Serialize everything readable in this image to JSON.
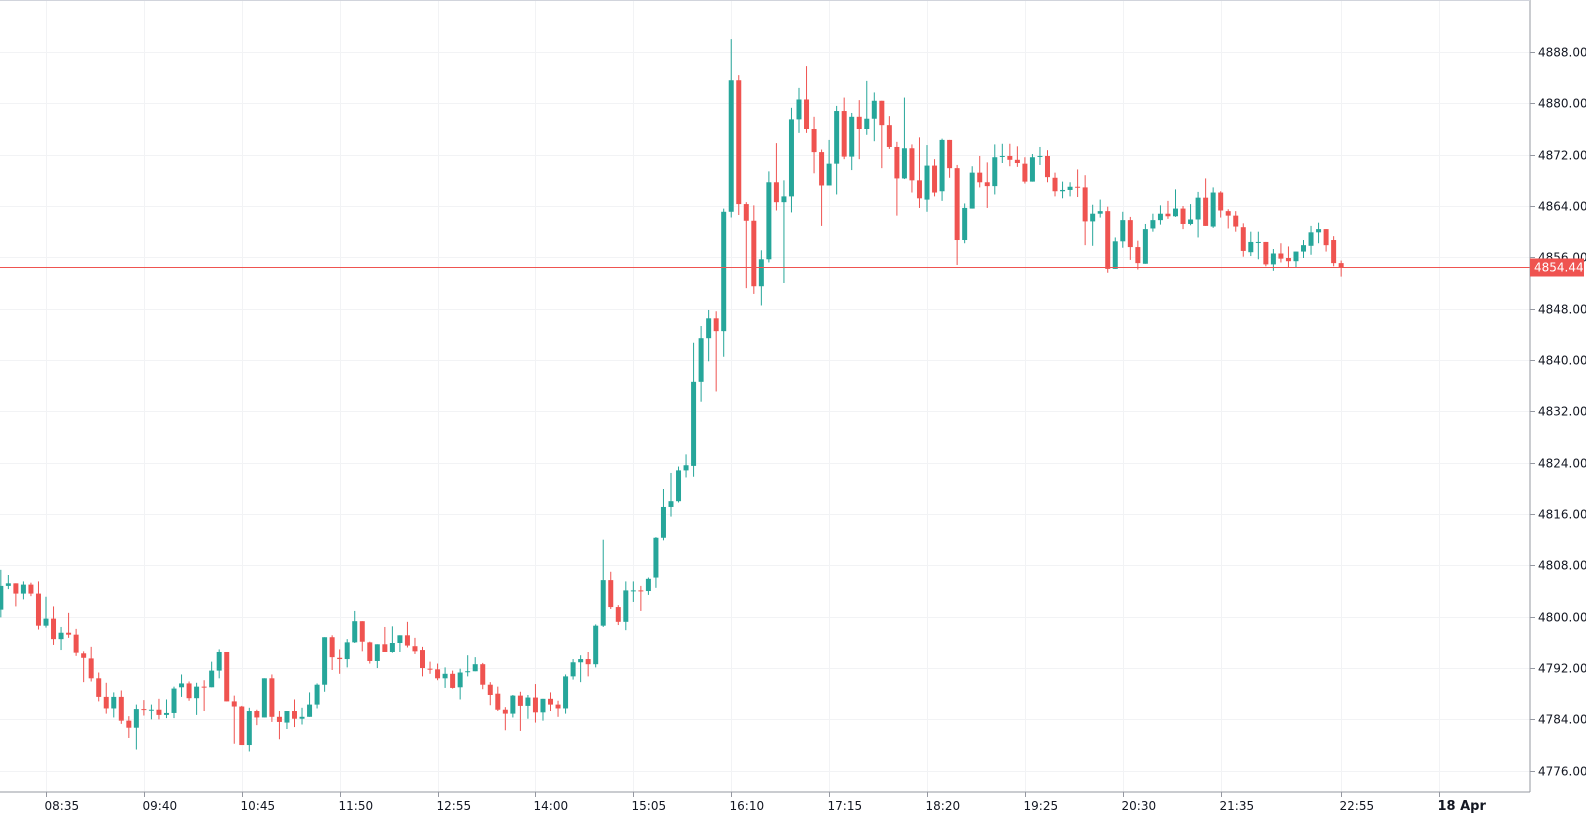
{
  "chart_data": {
    "type": "candlestick",
    "title": "",
    "interval_minutes": 5,
    "ylim": [
      4772.7,
      4896.1
    ],
    "y_ticks": [
      4776,
      4784,
      4792,
      4800,
      4808,
      4816,
      4824,
      4832,
      4840,
      4848,
      4856,
      4864,
      4872,
      4880,
      4888
    ],
    "y_tick_labels": [
      "4776.00",
      "4784.00",
      "4792.00",
      "4800.00",
      "4808.00",
      "4816.00",
      "4824.00",
      "4832.00",
      "4840.00",
      "4848.00",
      "4856.00",
      "4864.00",
      "4872.00",
      "4880.00",
      "4888.00"
    ],
    "x_ticks": [
      {
        "index": 6,
        "label": "08:35"
      },
      {
        "index": 19,
        "label": "09:40"
      },
      {
        "index": 32,
        "label": "10:45"
      },
      {
        "index": 45,
        "label": "11:50"
      },
      {
        "index": 58,
        "label": "12:55"
      },
      {
        "index": 71,
        "label": "14:00"
      },
      {
        "index": 84,
        "label": "15:05"
      },
      {
        "index": 97,
        "label": "16:10"
      },
      {
        "index": 110,
        "label": "17:15"
      },
      {
        "index": 123,
        "label": "18:20"
      },
      {
        "index": 136,
        "label": "19:25"
      },
      {
        "index": 149,
        "label": "20:30"
      },
      {
        "index": 162,
        "label": "21:35"
      },
      {
        "index": 178,
        "label": "22:55"
      },
      {
        "index": 191,
        "label": "18 Apr",
        "bold": true
      }
    ],
    "last_price": 4854.44,
    "last_price_label": "4854.44",
    "colors": {
      "up": "#26a69a",
      "down": "#ef5350",
      "grid": "#f2f3f5",
      "axis": "#9598a1",
      "last": "#ef5350"
    },
    "ohlc_fields": [
      "open",
      "high",
      "low",
      "close"
    ],
    "ohlc": [
      [
        4801.1,
        4807.3,
        4799.9,
        4804.8
      ],
      [
        4804.8,
        4806.5,
        4804.3,
        4805.2
      ],
      [
        4805.2,
        4805.2,
        4801.6,
        4803.6
      ],
      [
        4803.6,
        4805.5,
        4802.7,
        4805.0
      ],
      [
        4805.0,
        4805.3,
        4803.2,
        4803.6
      ],
      [
        4803.6,
        4805.5,
        4798.0,
        4798.6
      ],
      [
        4798.6,
        4803.1,
        4798.3,
        4799.7
      ],
      [
        4799.7,
        4801.6,
        4795.6,
        4796.5
      ],
      [
        4796.5,
        4798.4,
        4794.8,
        4797.5
      ],
      [
        4797.5,
        4800.6,
        4796.7,
        4797.2
      ],
      [
        4797.2,
        4798.1,
        4793.9,
        4794.4
      ],
      [
        4794.3,
        4794.6,
        4789.8,
        4793.6
      ],
      [
        4793.5,
        4795.3,
        4789.9,
        4790.4
      ],
      [
        4790.4,
        4791.3,
        4786.8,
        4787.5
      ],
      [
        4787.5,
        4789.7,
        4784.9,
        4785.7
      ],
      [
        4785.7,
        4788.2,
        4784.3,
        4787.5
      ],
      [
        4787.5,
        4788.5,
        4783.3,
        4783.8
      ],
      [
        4783.8,
        4784.5,
        4781.1,
        4782.7
      ],
      [
        4782.7,
        4786.3,
        4779.3,
        4785.6
      ],
      [
        4785.6,
        4787.0,
        4784.6,
        4785.5
      ],
      [
        4785.4,
        4786.3,
        4784.0,
        4785.5
      ],
      [
        4785.5,
        4787.2,
        4784.0,
        4784.7
      ],
      [
        4784.7,
        4787.1,
        4784.2,
        4785.0
      ],
      [
        4785.0,
        4789.1,
        4784.2,
        4788.8
      ],
      [
        4789.0,
        4791.0,
        4787.5,
        4789.6
      ],
      [
        4789.6,
        4789.9,
        4786.9,
        4787.3
      ],
      [
        4787.3,
        4789.7,
        4784.7,
        4789.1
      ],
      [
        4789.1,
        4790.1,
        4785.3,
        4789.0
      ],
      [
        4789.0,
        4793.0,
        4789.0,
        4791.6
      ],
      [
        4791.6,
        4794.9,
        4790.4,
        4794.5
      ],
      [
        4794.5,
        4794.5,
        4786.8,
        4786.8
      ],
      [
        4786.8,
        4787.7,
        4780.2,
        4786.0
      ],
      [
        4786.0,
        4786.1,
        4780.0,
        4780.0
      ],
      [
        4780.0,
        4785.8,
        4779.0,
        4785.3
      ],
      [
        4785.3,
        4785.5,
        4783.1,
        4784.3
      ],
      [
        4784.3,
        4790.4,
        4784.3,
        4790.4
      ],
      [
        4790.4,
        4791.0,
        4783.6,
        4784.4
      ],
      [
        4784.4,
        4785.3,
        4780.9,
        4783.6
      ],
      [
        4783.5,
        4785.3,
        4782.5,
        4785.3
      ],
      [
        4785.3,
        4787.1,
        4782.8,
        4784.1
      ],
      [
        4784.1,
        4785.8,
        4783.2,
        4784.4
      ],
      [
        4784.4,
        4788.2,
        4784.4,
        4786.3
      ],
      [
        4786.3,
        4789.6,
        4785.7,
        4789.4
      ],
      [
        4789.4,
        4796.8,
        4788.3,
        4796.8
      ],
      [
        4796.8,
        4797.1,
        4791.7,
        4793.7
      ],
      [
        4793.6,
        4794.9,
        4791.1,
        4793.4
      ],
      [
        4793.4,
        4796.5,
        4792.1,
        4796.0
      ],
      [
        4796.0,
        4800.9,
        4795.9,
        4799.3
      ],
      [
        4799.3,
        4799.3,
        4794.6,
        4796.1
      ],
      [
        4796.0,
        4796.1,
        4792.7,
        4793.1
      ],
      [
        4793.1,
        4795.7,
        4792.0,
        4795.7
      ],
      [
        4795.7,
        4798.4,
        4794.5,
        4794.5
      ],
      [
        4794.5,
        4798.5,
        4794.4,
        4795.9
      ],
      [
        4795.9,
        4797.1,
        4794.5,
        4797.1
      ],
      [
        4797.1,
        4799.2,
        4795.2,
        4795.5
      ],
      [
        4795.4,
        4796.7,
        4794.2,
        4794.6
      ],
      [
        4794.8,
        4795.3,
        4790.7,
        4792.0
      ],
      [
        4791.9,
        4793.0,
        4791.1,
        4791.8
      ],
      [
        4791.8,
        4792.7,
        4790.1,
        4790.4
      ],
      [
        4790.4,
        4792.1,
        4788.9,
        4791.1
      ],
      [
        4791.1,
        4791.6,
        4788.8,
        4788.9
      ],
      [
        4789.0,
        4791.9,
        4787.1,
        4791.3
      ],
      [
        4791.4,
        4794.0,
        4790.7,
        4791.5
      ],
      [
        4791.5,
        4793.7,
        4791.5,
        4792.6
      ],
      [
        4792.6,
        4792.8,
        4788.7,
        4789.4
      ],
      [
        4789.4,
        4789.8,
        4786.2,
        4787.8
      ],
      [
        4788.0,
        4789.1,
        4785.3,
        4785.5
      ],
      [
        4785.5,
        4785.9,
        4782.3,
        4784.9
      ],
      [
        4784.9,
        4787.8,
        4784.3,
        4787.7
      ],
      [
        4787.7,
        4788.3,
        4782.2,
        4786.1
      ],
      [
        4786.1,
        4787.8,
        4784.1,
        4787.4
      ],
      [
        4787.4,
        4789.5,
        4783.5,
        4785.1
      ],
      [
        4785.1,
        4787.2,
        4783.8,
        4787.2
      ],
      [
        4787.2,
        4788.2,
        4785.3,
        4786.3
      ],
      [
        4786.3,
        4786.9,
        4784.4,
        4785.7
      ],
      [
        4785.7,
        4791.0,
        4784.9,
        4790.7
      ],
      [
        4790.7,
        4793.4,
        4790.2,
        4792.9
      ],
      [
        4792.9,
        4794.0,
        4789.8,
        4793.4
      ],
      [
        4793.4,
        4794.5,
        4790.7,
        4792.6
      ],
      [
        4792.6,
        4798.8,
        4792.1,
        4798.6
      ],
      [
        4798.6,
        4812.0,
        4798.4,
        4805.7
      ],
      [
        4805.7,
        4807.0,
        4801.2,
        4801.5
      ],
      [
        4801.5,
        4801.8,
        4798.7,
        4799.2
      ],
      [
        4799.2,
        4805.5,
        4797.9,
        4804.1
      ],
      [
        4804.0,
        4805.5,
        4802.3,
        4804.1
      ],
      [
        4804.1,
        4804.8,
        4800.9,
        4804.0
      ],
      [
        4804.0,
        4806.1,
        4803.4,
        4805.9
      ],
      [
        4806.1,
        4812.4,
        4804.5,
        4812.3
      ],
      [
        4812.3,
        4819.9,
        4811.9,
        4817.1
      ],
      [
        4817.1,
        4822.4,
        4815.6,
        4818.0
      ],
      [
        4818.0,
        4823.4,
        4817.8,
        4822.8
      ],
      [
        4822.8,
        4825.3,
        4821.7,
        4823.6
      ],
      [
        4823.5,
        4842.7,
        4821.8,
        4836.6
      ],
      [
        4836.6,
        4845.3,
        4833.5,
        4843.4
      ],
      [
        4843.4,
        4847.8,
        4839.8,
        4846.5
      ],
      [
        4846.5,
        4847.6,
        4835.1,
        4844.5
      ],
      [
        4844.5,
        4863.6,
        4840.5,
        4863.1
      ],
      [
        4863.1,
        4890.0,
        4862.2,
        4883.6
      ],
      [
        4883.6,
        4884.4,
        4862.6,
        4864.3
      ],
      [
        4864.3,
        4864.6,
        4851.2,
        4861.7
      ],
      [
        4861.7,
        4864.1,
        4850.3,
        4851.5
      ],
      [
        4851.5,
        4857.1,
        4848.5,
        4855.7
      ],
      [
        4855.7,
        4869.4,
        4855.2,
        4867.7
      ],
      [
        4867.7,
        4873.8,
        4863.3,
        4864.6
      ],
      [
        4864.6,
        4868.0,
        4852.0,
        4865.5
      ],
      [
        4865.5,
        4879.3,
        4863.0,
        4877.5
      ],
      [
        4877.5,
        4882.4,
        4875.4,
        4880.6
      ],
      [
        4880.6,
        4885.8,
        4875.4,
        4876.0
      ],
      [
        4876.0,
        4877.9,
        4869.1,
        4872.4
      ],
      [
        4872.4,
        4872.8,
        4860.9,
        4867.2
      ],
      [
        4867.2,
        4874.3,
        4867.2,
        4870.6
      ],
      [
        4870.6,
        4879.6,
        4865.8,
        4878.8
      ],
      [
        4878.8,
        4880.9,
        4871.3,
        4871.7
      ],
      [
        4871.7,
        4878.5,
        4869.6,
        4877.9
      ],
      [
        4877.9,
        4880.5,
        4871.3,
        4876.0
      ],
      [
        4876.0,
        4883.5,
        4875.1,
        4877.6
      ],
      [
        4877.6,
        4881.7,
        4874.1,
        4880.4
      ],
      [
        4880.4,
        4880.4,
        4869.9,
        4876.6
      ],
      [
        4876.6,
        4878.0,
        4872.9,
        4873.2
      ],
      [
        4873.2,
        4874.0,
        4862.5,
        4868.3
      ],
      [
        4868.3,
        4880.9,
        4868.2,
        4873.0
      ],
      [
        4873.0,
        4873.6,
        4866.1,
        4868.0
      ],
      [
        4868.0,
        4874.7,
        4863.7,
        4865.2
      ],
      [
        4865.0,
        4873.5,
        4863.1,
        4870.3
      ],
      [
        4870.3,
        4871.3,
        4865.5,
        4866.1
      ],
      [
        4866.3,
        4874.5,
        4864.8,
        4874.3
      ],
      [
        4874.3,
        4874.3,
        4868.4,
        4869.9
      ],
      [
        4869.9,
        4870.4,
        4854.8,
        4858.7
      ],
      [
        4858.7,
        4864.4,
        4858.2,
        4863.7
      ],
      [
        4863.6,
        4870.2,
        4863.6,
        4869.2
      ],
      [
        4869.2,
        4871.8,
        4866.9,
        4867.7
      ],
      [
        4867.7,
        4870.8,
        4863.7,
        4867.1
      ],
      [
        4867.1,
        4873.6,
        4865.8,
        4871.6
      ],
      [
        4871.7,
        4873.7,
        4870.7,
        4871.8
      ],
      [
        4871.8,
        4873.7,
        4870.2,
        4871.2
      ],
      [
        4871.2,
        4873.3,
        4870.1,
        4870.7
      ],
      [
        4870.6,
        4871.6,
        4867.5,
        4867.8
      ],
      [
        4867.8,
        4872.1,
        4867.8,
        4871.6
      ],
      [
        4871.7,
        4873.2,
        4870.4,
        4871.8
      ],
      [
        4871.8,
        4872.7,
        4867.7,
        4868.5
      ],
      [
        4868.4,
        4869.2,
        4865.5,
        4866.3
      ],
      [
        4866.3,
        4867.8,
        4865.2,
        4866.5
      ],
      [
        4866.5,
        4867.7,
        4865.5,
        4867.0
      ],
      [
        4867.0,
        4869.7,
        4865.4,
        4866.9
      ],
      [
        4866.9,
        4868.8,
        4857.9,
        4861.6
      ],
      [
        4861.6,
        4864.2,
        4857.8,
        4862.8
      ],
      [
        4862.8,
        4865.0,
        4862.2,
        4863.2
      ],
      [
        4863.2,
        4863.9,
        4853.6,
        4854.2
      ],
      [
        4854.2,
        4859.1,
        4854.2,
        4858.5
      ],
      [
        4858.5,
        4863.1,
        4857.5,
        4861.8
      ],
      [
        4861.8,
        4862.3,
        4855.6,
        4857.6
      ],
      [
        4857.6,
        4858.6,
        4854.1,
        4855.1
      ],
      [
        4855.0,
        4861.2,
        4855.0,
        4860.4
      ],
      [
        4860.5,
        4862.8,
        4860.0,
        4861.8
      ],
      [
        4861.8,
        4864.1,
        4861.1,
        4862.8
      ],
      [
        4862.8,
        4864.8,
        4862.0,
        4862.4
      ],
      [
        4862.4,
        4866.6,
        4862.3,
        4863.6
      ],
      [
        4863.6,
        4864.0,
        4860.4,
        4861.2
      ],
      [
        4861.2,
        4864.3,
        4861.0,
        4861.9
      ],
      [
        4861.9,
        4866.2,
        4859.1,
        4865.3
      ],
      [
        4865.3,
        4868.3,
        4860.9,
        4860.9
      ],
      [
        4860.8,
        4866.9,
        4860.6,
        4866.1
      ],
      [
        4866.1,
        4866.3,
        4862.2,
        4863.3
      ],
      [
        4863.2,
        4863.5,
        4860.5,
        4862.5
      ],
      [
        4862.5,
        4863.2,
        4860.0,
        4860.8
      ],
      [
        4860.7,
        4861.3,
        4856.1,
        4857.0
      ],
      [
        4856.8,
        4860.0,
        4856.2,
        4858.4
      ],
      [
        4858.3,
        4860.0,
        4855.7,
        4858.4
      ],
      [
        4858.4,
        4858.4,
        4854.6,
        4854.9
      ],
      [
        4854.9,
        4857.3,
        4853.9,
        4856.6
      ],
      [
        4856.6,
        4858.2,
        4855.2,
        4855.8
      ],
      [
        4855.9,
        4857.7,
        4854.4,
        4855.4
      ],
      [
        4855.4,
        4856.9,
        4854.4,
        4856.9
      ],
      [
        4856.9,
        4858.7,
        4855.9,
        4857.9
      ],
      [
        4857.8,
        4860.9,
        4856.4,
        4859.9
      ],
      [
        4859.9,
        4861.4,
        4858.2,
        4860.4
      ],
      [
        4860.4,
        4860.4,
        4856.9,
        4857.9
      ],
      [
        4858.7,
        4859.3,
        4854.6,
        4855.1
      ],
      [
        4855.1,
        4855.5,
        4853.0,
        4854.44
      ]
    ]
  }
}
